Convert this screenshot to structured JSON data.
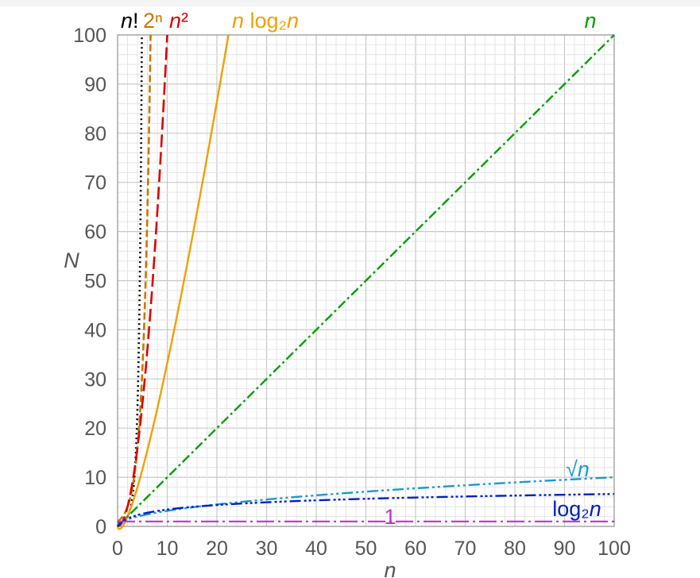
{
  "chart_data": {
    "type": "line",
    "title": "",
    "xlabel": "n",
    "ylabel": "N",
    "xlim": [
      0,
      100
    ],
    "ylim": [
      0,
      100
    ],
    "x_ticks": [
      "0",
      "10",
      "20",
      "30",
      "40",
      "50",
      "60",
      "70",
      "80",
      "90",
      "100"
    ],
    "y_ticks": [
      "0",
      "10",
      "20",
      "30",
      "40",
      "50",
      "60",
      "70",
      "80",
      "90",
      "100"
    ],
    "grid": true,
    "series": [
      {
        "name": "n!",
        "label_parts": [
          {
            "t": "n",
            "i": true
          },
          {
            "t": "!",
            "i": false
          }
        ],
        "func": "factorial",
        "color": "#000000",
        "dash": "dotted"
      },
      {
        "name": "2ⁿ",
        "label_parts": [
          {
            "t": "2",
            "i": false
          },
          {
            "t": "ⁿ",
            "i": false
          }
        ],
        "func": "pow2",
        "color": "#c87800",
        "dash": "dashed"
      },
      {
        "name": "n²",
        "label_parts": [
          {
            "t": "n",
            "i": true
          },
          {
            "t": "²",
            "i": false
          }
        ],
        "func": "square",
        "color": "#dd0000",
        "dash": "longdash"
      },
      {
        "name": "n log₂n",
        "label_parts": [
          {
            "t": "n",
            "i": true
          },
          {
            "t": " log₂",
            "i": false
          },
          {
            "t": "n",
            "i": true
          }
        ],
        "func": "nlogn",
        "color": "#f0a000",
        "dash": "solid"
      },
      {
        "name": "n",
        "label_parts": [
          {
            "t": "n",
            "i": true
          }
        ],
        "func": "linear",
        "color": "#00a000",
        "dash": "dashdot"
      },
      {
        "name": "√n",
        "label_parts": [
          {
            "t": "√",
            "i": false
          },
          {
            "t": "n",
            "i": true
          }
        ],
        "func": "sqrt",
        "color": "#1a9ad0",
        "dash": "dashdotdot"
      },
      {
        "name": "log₂n",
        "label_parts": [
          {
            "t": "log₂",
            "i": false
          },
          {
            "t": "n",
            "i": true
          }
        ],
        "func": "log2",
        "color": "#0020c8",
        "dash": "dashdotdotdot"
      },
      {
        "name": "1",
        "label_parts": [
          {
            "t": "1",
            "i": false
          }
        ],
        "func": "constant",
        "color": "#c030d0",
        "dash": "longdashdot"
      }
    ]
  }
}
